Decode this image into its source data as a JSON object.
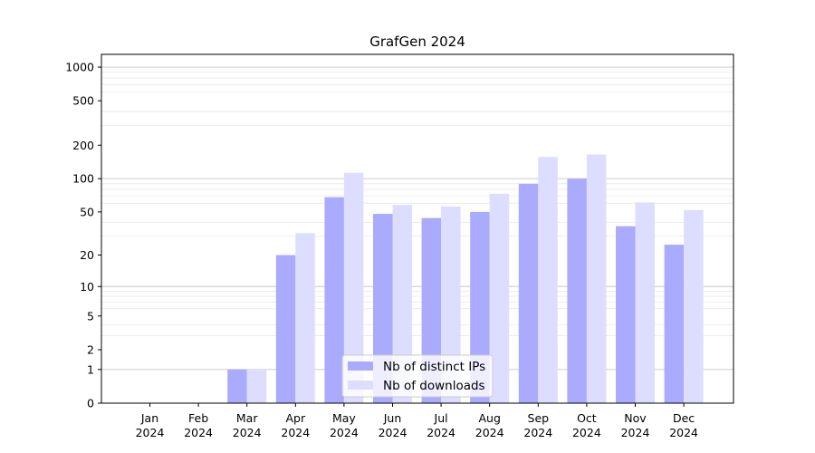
{
  "chart_data": {
    "type": "bar",
    "title": "GrafGen 2024",
    "xlabel": "",
    "ylabel": "",
    "y_scale": "log(1+y)",
    "ylim": [
      0,
      1300
    ],
    "y_ticks": [
      0,
      1,
      2,
      5,
      10,
      20,
      50,
      100,
      200,
      500,
      1000
    ],
    "grid": "y (major and minor)",
    "legend_position": "bottom-center",
    "categories": [
      [
        "Jan",
        "2024"
      ],
      [
        "Feb",
        "2024"
      ],
      [
        "Mar",
        "2024"
      ],
      [
        "Apr",
        "2024"
      ],
      [
        "May",
        "2024"
      ],
      [
        "Jun",
        "2024"
      ],
      [
        "Jul",
        "2024"
      ],
      [
        "Aug",
        "2024"
      ],
      [
        "Sep",
        "2024"
      ],
      [
        "Oct",
        "2024"
      ],
      [
        "Nov",
        "2024"
      ],
      [
        "Dec",
        "2024"
      ]
    ],
    "series": [
      {
        "name": "Nb of distinct IPs",
        "color": "#aaaaff",
        "values": [
          0,
          0,
          1,
          20,
          68,
          48,
          44,
          50,
          90,
          100,
          37,
          25
        ]
      },
      {
        "name": "Nb of downloads",
        "color": "#ddddff",
        "values": [
          0,
          0,
          1,
          32,
          113,
          58,
          56,
          73,
          157,
          165,
          61,
          52
        ]
      }
    ]
  }
}
